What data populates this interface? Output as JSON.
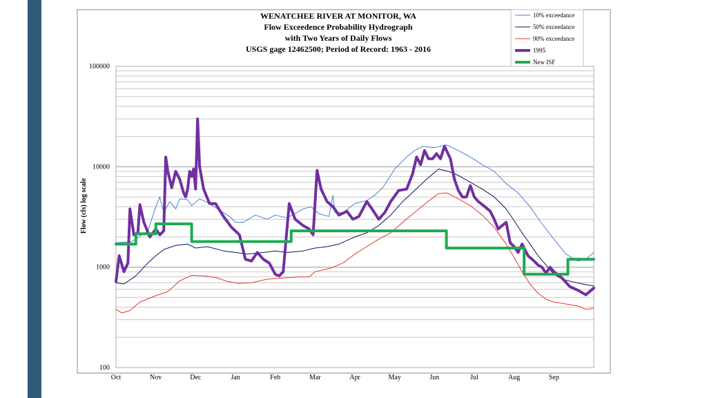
{
  "colors": {
    "accent_bar": "#2e5c78",
    "p10": "#4a7fd6",
    "p50": "#0b1260",
    "p90": "#e0382d",
    "y1995": "#7030a0",
    "isf": "#1faa50",
    "grid": "#c8c8c8",
    "frame": "#888888"
  },
  "chart_data": {
    "type": "line",
    "title": [
      "WENATCHEE RIVER AT MONITOR, WA",
      "Flow Exceedence Probability Hydrograph",
      "with Two Years of Daily Flows",
      "USGS gage 12462500; Period of Record: 1963 - 2016"
    ],
    "xlabel": "",
    "ylabel": "Flow (cfs) log scale",
    "y_scale": "log",
    "ylim": [
      100,
      100000
    ],
    "yticks": [
      "100000",
      "10000",
      "1000",
      "100"
    ],
    "ytick_values": [
      100000,
      10000,
      1000,
      100
    ],
    "x_unit": "month (0 = 1 Oct, 12 = 30 Sep)",
    "xlim": [
      0,
      12
    ],
    "xticks": [
      "Oct",
      "Nov",
      "Dec",
      "Jan",
      "Feb",
      "Mar",
      "Apr",
      "May",
      "Jun",
      "Jul",
      "Aug",
      "Sep"
    ],
    "xtick_values": [
      0,
      1,
      2,
      3,
      4,
      5,
      6,
      7,
      8,
      9,
      10,
      11
    ],
    "grid": true,
    "legend_position": "top-right",
    "series": [
      {
        "name": "10% exceedance",
        "key": "p10",
        "width": 1,
        "points": [
          [
            0,
            1750
          ],
          [
            0.4,
            1800
          ],
          [
            0.8,
            2300
          ],
          [
            1.0,
            4000
          ],
          [
            1.1,
            5000
          ],
          [
            1.2,
            3500
          ],
          [
            1.35,
            4500
          ],
          [
            1.5,
            3800
          ],
          [
            1.6,
            4800
          ],
          [
            1.8,
            4700
          ],
          [
            1.9,
            4100
          ],
          [
            2.1,
            4800
          ],
          [
            2.3,
            4400
          ],
          [
            2.6,
            3700
          ],
          [
            2.9,
            3100
          ],
          [
            3.0,
            2800
          ],
          [
            3.2,
            2800
          ],
          [
            3.5,
            3300
          ],
          [
            3.8,
            3000
          ],
          [
            4.0,
            3300
          ],
          [
            4.3,
            3100
          ],
          [
            4.7,
            3800
          ],
          [
            4.9,
            4000
          ],
          [
            5.1,
            3400
          ],
          [
            5.35,
            3200
          ],
          [
            5.45,
            5200
          ],
          [
            5.5,
            3500
          ],
          [
            5.7,
            3500
          ],
          [
            6.0,
            4300
          ],
          [
            6.3,
            4600
          ],
          [
            6.5,
            5200
          ],
          [
            6.7,
            6200
          ],
          [
            7.0,
            9500
          ],
          [
            7.3,
            12500
          ],
          [
            7.5,
            14500
          ],
          [
            7.7,
            16000
          ],
          [
            8.0,
            15500
          ],
          [
            8.3,
            16500
          ],
          [
            8.6,
            14500
          ],
          [
            8.9,
            12500
          ],
          [
            9.2,
            10500
          ],
          [
            9.5,
            9000
          ],
          [
            9.8,
            6800
          ],
          [
            10.1,
            5500
          ],
          [
            10.4,
            4000
          ],
          [
            10.7,
            2700
          ],
          [
            11.0,
            1900
          ],
          [
            11.3,
            1350
          ],
          [
            11.6,
            1150
          ],
          [
            11.8,
            1200
          ],
          [
            12,
            1400
          ]
        ]
      },
      {
        "name": "50% exceedance",
        "key": "p50",
        "width": 1,
        "points": [
          [
            0,
            700
          ],
          [
            0.2,
            680
          ],
          [
            0.5,
            820
          ],
          [
            0.8,
            1100
          ],
          [
            1.0,
            1300
          ],
          [
            1.2,
            1500
          ],
          [
            1.5,
            1650
          ],
          [
            1.8,
            1700
          ],
          [
            2.0,
            1550
          ],
          [
            2.3,
            1600
          ],
          [
            2.7,
            1450
          ],
          [
            3.0,
            1400
          ],
          [
            3.3,
            1350
          ],
          [
            3.7,
            1400
          ],
          [
            4.0,
            1450
          ],
          [
            4.3,
            1400
          ],
          [
            4.7,
            1450
          ],
          [
            5.0,
            1550
          ],
          [
            5.3,
            1600
          ],
          [
            5.6,
            1700
          ],
          [
            6.0,
            2000
          ],
          [
            6.3,
            2200
          ],
          [
            6.6,
            2600
          ],
          [
            6.9,
            3300
          ],
          [
            7.2,
            4500
          ],
          [
            7.5,
            5800
          ],
          [
            7.8,
            7500
          ],
          [
            8.1,
            9500
          ],
          [
            8.35,
            9000
          ],
          [
            8.6,
            8200
          ],
          [
            8.9,
            7000
          ],
          [
            9.2,
            6000
          ],
          [
            9.5,
            5000
          ],
          [
            9.8,
            3800
          ],
          [
            10.0,
            2900
          ],
          [
            10.2,
            2200
          ],
          [
            10.4,
            1700
          ],
          [
            10.6,
            1300
          ],
          [
            10.8,
            1050
          ],
          [
            11.0,
            850
          ],
          [
            11.2,
            760
          ],
          [
            11.5,
            710
          ],
          [
            11.8,
            670
          ],
          [
            12,
            650
          ]
        ]
      },
      {
        "name": "90% exceedance",
        "key": "p90",
        "width": 1,
        "points": [
          [
            0,
            380
          ],
          [
            0.15,
            350
          ],
          [
            0.35,
            370
          ],
          [
            0.6,
            450
          ],
          [
            1.0,
            520
          ],
          [
            1.3,
            570
          ],
          [
            1.6,
            730
          ],
          [
            1.9,
            830
          ],
          [
            2.2,
            820
          ],
          [
            2.5,
            790
          ],
          [
            2.8,
            720
          ],
          [
            3.1,
            690
          ],
          [
            3.4,
            700
          ],
          [
            3.8,
            760
          ],
          [
            4.2,
            780
          ],
          [
            4.6,
            800
          ],
          [
            4.85,
            800
          ],
          [
            5.0,
            900
          ],
          [
            5.4,
            980
          ],
          [
            5.7,
            1100
          ],
          [
            6.0,
            1350
          ],
          [
            6.3,
            1600
          ],
          [
            6.6,
            1900
          ],
          [
            6.9,
            2200
          ],
          [
            7.2,
            2800
          ],
          [
            7.5,
            3500
          ],
          [
            7.8,
            4400
          ],
          [
            8.1,
            5400
          ],
          [
            8.3,
            5500
          ],
          [
            8.6,
            4800
          ],
          [
            8.9,
            4100
          ],
          [
            9.2,
            3300
          ],
          [
            9.5,
            2500
          ],
          [
            9.8,
            1700
          ],
          [
            10.0,
            1250
          ],
          [
            10.2,
            900
          ],
          [
            10.4,
            680
          ],
          [
            10.6,
            550
          ],
          [
            10.8,
            480
          ],
          [
            11.0,
            450
          ],
          [
            11.3,
            430
          ],
          [
            11.6,
            410
          ],
          [
            11.8,
            380
          ],
          [
            12,
            390
          ]
        ]
      },
      {
        "name": "1995",
        "key": "y1995",
        "width": 4,
        "points": [
          [
            0,
            720
          ],
          [
            0.08,
            1300
          ],
          [
            0.2,
            900
          ],
          [
            0.3,
            1100
          ],
          [
            0.35,
            3800
          ],
          [
            0.45,
            2100
          ],
          [
            0.55,
            2200
          ],
          [
            0.6,
            4200
          ],
          [
            0.7,
            2800
          ],
          [
            0.85,
            2000
          ],
          [
            1.0,
            2400
          ],
          [
            1.1,
            2100
          ],
          [
            1.2,
            2300
          ],
          [
            1.25,
            12500
          ],
          [
            1.3,
            9000
          ],
          [
            1.4,
            6200
          ],
          [
            1.5,
            9000
          ],
          [
            1.6,
            7500
          ],
          [
            1.7,
            5500
          ],
          [
            1.75,
            5000
          ],
          [
            1.8,
            6000
          ],
          [
            1.85,
            9000
          ],
          [
            1.9,
            8000
          ],
          [
            1.95,
            9500
          ],
          [
            2.0,
            6000
          ],
          [
            2.05,
            30000
          ],
          [
            2.1,
            10000
          ],
          [
            2.2,
            6000
          ],
          [
            2.35,
            4300
          ],
          [
            2.5,
            4300
          ],
          [
            2.7,
            3200
          ],
          [
            2.9,
            2500
          ],
          [
            3.1,
            2100
          ],
          [
            3.25,
            1200
          ],
          [
            3.4,
            1150
          ],
          [
            3.55,
            1400
          ],
          [
            3.7,
            1200
          ],
          [
            3.85,
            1100
          ],
          [
            4.0,
            850
          ],
          [
            4.1,
            820
          ],
          [
            4.2,
            900
          ],
          [
            4.35,
            4300
          ],
          [
            4.5,
            3000
          ],
          [
            4.7,
            2600
          ],
          [
            4.85,
            2400
          ],
          [
            4.95,
            2100
          ],
          [
            5.05,
            9200
          ],
          [
            5.15,
            6000
          ],
          [
            5.3,
            4500
          ],
          [
            5.45,
            4000
          ],
          [
            5.6,
            3300
          ],
          [
            5.8,
            3600
          ],
          [
            5.95,
            3000
          ],
          [
            6.1,
            3200
          ],
          [
            6.3,
            4500
          ],
          [
            6.45,
            3700
          ],
          [
            6.6,
            3000
          ],
          [
            6.75,
            3500
          ],
          [
            6.9,
            4500
          ],
          [
            7.1,
            5800
          ],
          [
            7.3,
            6000
          ],
          [
            7.45,
            8500
          ],
          [
            7.55,
            12500
          ],
          [
            7.65,
            10500
          ],
          [
            7.75,
            14500
          ],
          [
            7.85,
            12000
          ],
          [
            7.95,
            12000
          ],
          [
            8.05,
            13500
          ],
          [
            8.15,
            12000
          ],
          [
            8.25,
            16000
          ],
          [
            8.4,
            12000
          ],
          [
            8.5,
            7500
          ],
          [
            8.6,
            5800
          ],
          [
            8.7,
            5000
          ],
          [
            8.8,
            5000
          ],
          [
            8.9,
            6500
          ],
          [
            9.0,
            5000
          ],
          [
            9.1,
            4500
          ],
          [
            9.2,
            4200
          ],
          [
            9.3,
            3900
          ],
          [
            9.4,
            3600
          ],
          [
            9.5,
            3000
          ],
          [
            9.6,
            2400
          ],
          [
            9.7,
            2600
          ],
          [
            9.8,
            2800
          ],
          [
            9.9,
            1750
          ],
          [
            10.0,
            1600
          ],
          [
            10.1,
            1400
          ],
          [
            10.2,
            1700
          ],
          [
            10.35,
            1300
          ],
          [
            10.5,
            1150
          ],
          [
            10.6,
            1050
          ],
          [
            10.7,
            1000
          ],
          [
            10.8,
            870
          ],
          [
            10.9,
            1000
          ],
          [
            11.0,
            900
          ],
          [
            11.2,
            780
          ],
          [
            11.4,
            640
          ],
          [
            11.6,
            590
          ],
          [
            11.8,
            530
          ],
          [
            12,
            620
          ]
        ]
      },
      {
        "name": "New ISF",
        "key": "isf",
        "width": 4,
        "points": [
          [
            0,
            1700
          ],
          [
            0.5,
            1700
          ],
          [
            0.5,
            2150
          ],
          [
            1.0,
            2150
          ],
          [
            1.0,
            2700
          ],
          [
            1.9,
            2700
          ],
          [
            1.9,
            1800
          ],
          [
            4.4,
            1800
          ],
          [
            4.4,
            2300
          ],
          [
            8.3,
            2300
          ],
          [
            8.3,
            1550
          ],
          [
            10.25,
            1550
          ],
          [
            10.25,
            850
          ],
          [
            11.35,
            850
          ],
          [
            11.35,
            1200
          ],
          [
            12,
            1200
          ]
        ]
      }
    ]
  }
}
